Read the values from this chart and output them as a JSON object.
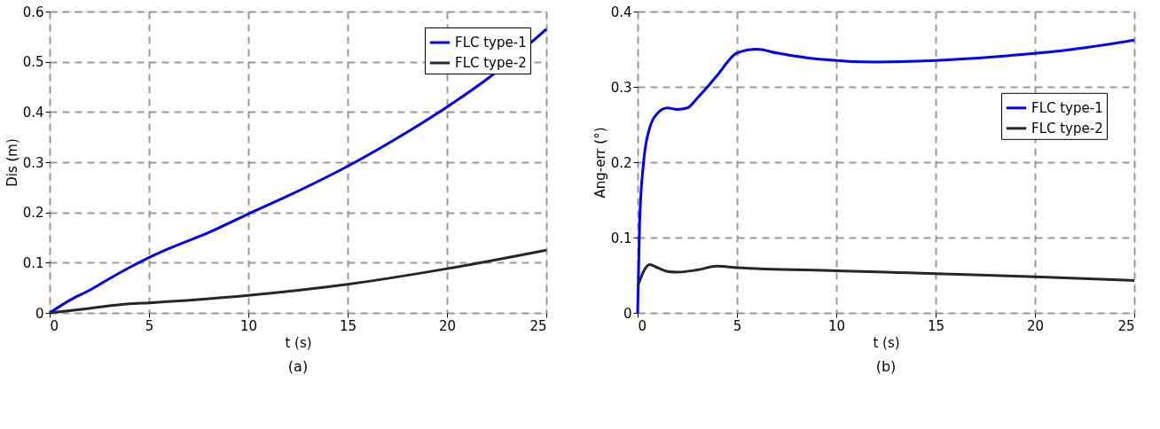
{
  "chart_data": [
    {
      "type": "line",
      "xlabel": "t (s)",
      "ylabel": "Dis (m)",
      "annotations": [
        "(a)"
      ],
      "xlim": [
        0,
        25
      ],
      "ylim": [
        0,
        0.6
      ],
      "xticks": [
        0,
        5,
        10,
        15,
        20,
        25
      ],
      "yticks": [
        0,
        0.1,
        0.2,
        0.3,
        0.4,
        0.5,
        0.6
      ],
      "grid": true,
      "legend": "top right",
      "line_style": "solid",
      "marker": "none",
      "series": [
        {
          "name": "FLC type-1",
          "color": "#0000ff",
          "x": [
            0,
            1,
            2,
            3,
            4,
            5,
            6,
            8,
            10,
            12,
            15,
            18,
            20,
            22,
            25
          ],
          "values": [
            0,
            0.025,
            0.045,
            0.068,
            0.09,
            0.11,
            0.128,
            0.16,
            0.197,
            0.233,
            0.292,
            0.36,
            0.41,
            0.465,
            0.565
          ]
        },
        {
          "name": "FLC type-2",
          "color": "#262626",
          "x": [
            0,
            2,
            4,
            5,
            10,
            15,
            20,
            25
          ],
          "values": [
            0,
            0.009,
            0.018,
            0.02,
            0.035,
            0.057,
            0.088,
            0.125
          ]
        }
      ]
    },
    {
      "type": "line",
      "xlabel": "t (s)",
      "ylabel": "Ang-err (°)",
      "annotations": [
        "(b)"
      ],
      "xlim": [
        0,
        25
      ],
      "ylim": [
        0,
        0.4
      ],
      "xticks": [
        0,
        5,
        10,
        15,
        20,
        25
      ],
      "yticks": [
        0,
        0.1,
        0.2,
        0.3,
        0.4
      ],
      "grid": true,
      "legend": "right",
      "line_style": "solid",
      "marker": "none",
      "series": [
        {
          "name": "FLC type-1",
          "color": "#0000ff",
          "x": [
            0,
            0.1,
            0.3,
            0.6,
            1,
            1.5,
            2,
            2.5,
            3,
            4,
            5,
            6,
            7,
            9,
            12,
            15,
            18,
            21,
            25
          ],
          "values": [
            0,
            0.12,
            0.2,
            0.245,
            0.265,
            0.272,
            0.27,
            0.272,
            0.285,
            0.315,
            0.345,
            0.35,
            0.345,
            0.337,
            0.333,
            0.335,
            0.34,
            0.347,
            0.362
          ]
        },
        {
          "name": "FLC type-2",
          "color": "#262626",
          "x": [
            0,
            0.3,
            0.6,
            1,
            1.5,
            2,
            3,
            4,
            5,
            10,
            15,
            20,
            25
          ],
          "values": [
            0.035,
            0.055,
            0.064,
            0.06,
            0.055,
            0.054,
            0.057,
            0.062,
            0.06,
            0.056,
            0.052,
            0.048,
            0.043
          ]
        }
      ]
    }
  ]
}
